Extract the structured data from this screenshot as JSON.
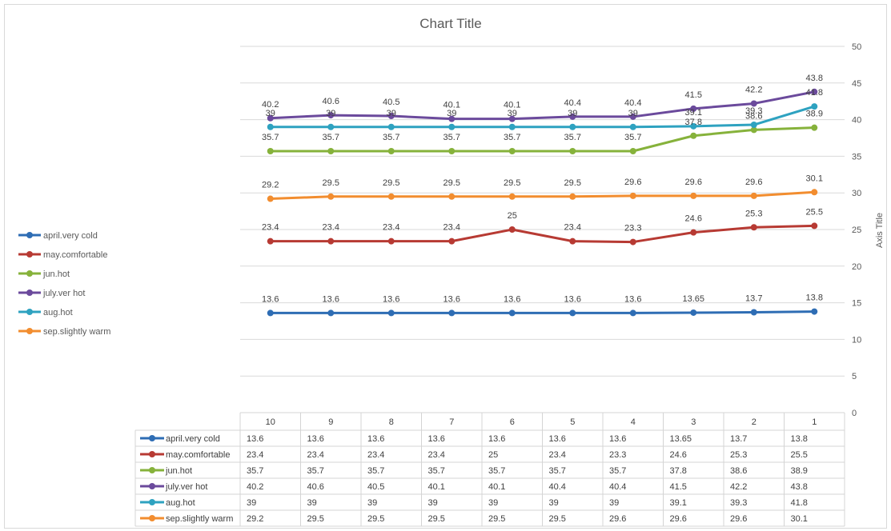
{
  "chart_data": {
    "type": "line",
    "title": "Chart Title",
    "ylabel": "Axis Title",
    "xlabel": "",
    "ylim": [
      0,
      50
    ],
    "yticks": [
      0,
      5,
      10,
      15,
      20,
      25,
      30,
      35,
      40,
      45,
      50
    ],
    "y_axis_position": "right",
    "grid": true,
    "legend_position": "left",
    "data_table": true,
    "categories": [
      "10",
      "9",
      "8",
      "7",
      "6",
      "5",
      "4",
      "3",
      "2",
      "1"
    ],
    "series": [
      {
        "name": "april.very cold",
        "color": "#2e6db4",
        "values": [
          13.6,
          13.6,
          13.6,
          13.6,
          13.6,
          13.6,
          13.6,
          13.65,
          13.7,
          13.8
        ]
      },
      {
        "name": "may.comfortable",
        "color": "#b73a33",
        "values": [
          23.4,
          23.4,
          23.4,
          23.4,
          25,
          23.4,
          23.3,
          24.6,
          25.3,
          25.5
        ]
      },
      {
        "name": "jun.hot",
        "color": "#86b23b",
        "values": [
          35.7,
          35.7,
          35.7,
          35.7,
          35.7,
          35.7,
          35.7,
          37.8,
          38.6,
          38.9
        ]
      },
      {
        "name": "july.ver hot",
        "color": "#6b4a9c",
        "values": [
          40.2,
          40.6,
          40.5,
          40.1,
          40.1,
          40.4,
          40.4,
          41.5,
          42.2,
          43.8
        ]
      },
      {
        "name": "aug.hot",
        "color": "#2ea2c0",
        "values": [
          39,
          39,
          39,
          39,
          39,
          39,
          39,
          39.1,
          39.3,
          41.8
        ]
      },
      {
        "name": "sep.slightly warm",
        "color": "#f28d2f",
        "values": [
          29.2,
          29.5,
          29.5,
          29.5,
          29.5,
          29.5,
          29.6,
          29.6,
          29.6,
          30.1
        ]
      }
    ]
  }
}
